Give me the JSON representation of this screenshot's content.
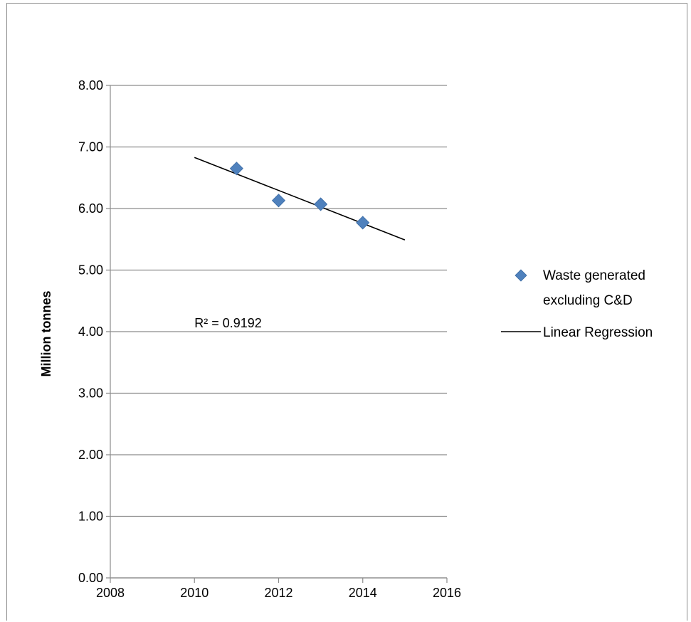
{
  "chart_data": {
    "type": "scatter",
    "title": "",
    "xlabel": "",
    "ylabel": "Million tonnes",
    "xlim": [
      2008,
      2016
    ],
    "ylim": [
      0,
      8
    ],
    "x_ticks": [
      "2008",
      "2010",
      "2012",
      "2014",
      "2016"
    ],
    "y_ticks": [
      "0.00",
      "1.00",
      "2.00",
      "3.00",
      "4.00",
      "5.00",
      "6.00",
      "7.00",
      "8.00"
    ],
    "grid": "horizontal",
    "legend_position": "right",
    "series": [
      {
        "name": "Waste generated excluding C&D",
        "name_lines": [
          "Waste generated",
          "excluding C&D"
        ],
        "marker": "diamond",
        "color": "#4f81bd",
        "x": [
          2011,
          2012,
          2013,
          2014
        ],
        "y": [
          6.65,
          6.13,
          6.07,
          5.77
        ]
      },
      {
        "name": "Linear Regression",
        "type": "line",
        "color": "#000000",
        "x": [
          2010,
          2015
        ],
        "y": [
          6.83,
          5.49
        ]
      }
    ],
    "annotations": [
      {
        "text": "R² = 0.9192",
        "x": 2010,
        "y": 4.07
      }
    ]
  }
}
